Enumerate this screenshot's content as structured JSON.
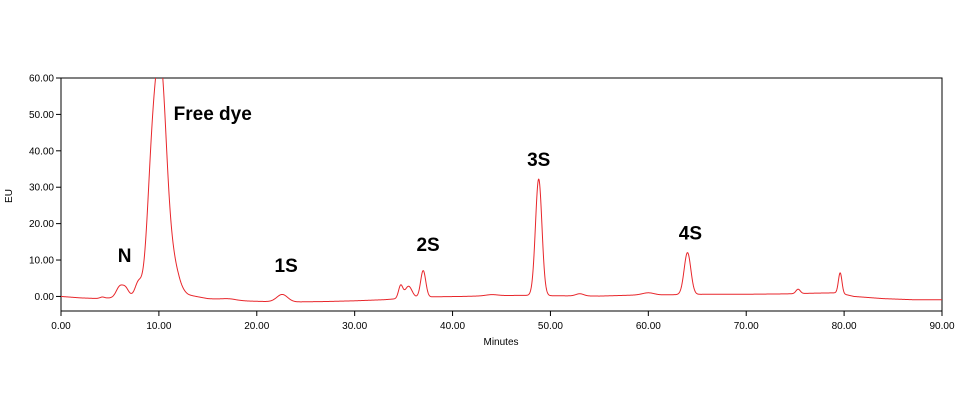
{
  "chart_data": {
    "type": "line",
    "title": "",
    "xlabel": "Minutes",
    "ylabel": "EU",
    "xlim": [
      0,
      90
    ],
    "ylim": [
      -4,
      60
    ],
    "grid": false,
    "line_color": "#e8262b",
    "x_ticks": [
      0,
      10,
      20,
      30,
      40,
      50,
      60,
      70,
      80,
      90
    ],
    "x_tick_labels": [
      "0.00",
      "10.00",
      "20.00",
      "30.00",
      "40.00",
      "50.00",
      "60.00",
      "70.00",
      "80.00",
      "90.00"
    ],
    "y_ticks": [
      0,
      10,
      20,
      30,
      40,
      50,
      60
    ],
    "y_tick_labels": [
      "0.00",
      "10.00",
      "20.00",
      "30.00",
      "40.00",
      "50.00",
      "60.00"
    ],
    "baseline": [
      [
        0,
        0
      ],
      [
        2,
        -0.4
      ],
      [
        4,
        -0.6
      ],
      [
        5,
        -0.4
      ],
      [
        7,
        0.2
      ],
      [
        9,
        0.6
      ],
      [
        12,
        1.3
      ],
      [
        13,
        0.4
      ],
      [
        15,
        -0.6
      ],
      [
        18,
        -1.2
      ],
      [
        21,
        -1.4
      ],
      [
        24,
        -1.5
      ],
      [
        27,
        -1.4
      ],
      [
        30,
        -1.2
      ],
      [
        33,
        -0.9
      ],
      [
        34.5,
        -0.6
      ],
      [
        36,
        -0.3
      ],
      [
        38,
        -0.1
      ],
      [
        41,
        0
      ],
      [
        44,
        0.2
      ],
      [
        47,
        0.3
      ],
      [
        50,
        0.2
      ],
      [
        55,
        0.1
      ],
      [
        59,
        0.4
      ],
      [
        61,
        0.4
      ],
      [
        63,
        0.5
      ],
      [
        66,
        0.6
      ],
      [
        70,
        0.6
      ],
      [
        74,
        0.7
      ],
      [
        77,
        0.9
      ],
      [
        79.4,
        1
      ],
      [
        81,
        0
      ],
      [
        84,
        -0.6
      ],
      [
        87,
        -0.9
      ],
      [
        90,
        -0.9
      ]
    ],
    "peaks": [
      {
        "rt": 4.2,
        "height": 0.4,
        "width": 0.25
      },
      {
        "rt": 6.0,
        "height": 2.8,
        "width": 0.35
      },
      {
        "rt": 6.6,
        "height": 2.0,
        "width": 0.3
      },
      {
        "rt": 7.9,
        "height": 3.4,
        "width": 0.32
      },
      {
        "rt": 9.3,
        "height": 32,
        "width": 0.5
      },
      {
        "rt": 10.2,
        "height": 55,
        "width": 0.55
      },
      {
        "rt": 11.2,
        "height": 10,
        "width": 0.65
      },
      {
        "rt": 17.2,
        "height": 0.4,
        "width": 0.8
      },
      {
        "rt": 22.6,
        "height": 2.0,
        "width": 0.55
      },
      {
        "rt": 34.7,
        "height": 3.5,
        "width": 0.22
      },
      {
        "rt": 35.5,
        "height": 3.2,
        "width": 0.35
      },
      {
        "rt": 37.0,
        "height": 7.3,
        "width": 0.26
      },
      {
        "rt": 44.0,
        "height": 0.3,
        "width": 0.6
      },
      {
        "rt": 48.8,
        "height": 32.0,
        "width": 0.33
      },
      {
        "rt": 53.0,
        "height": 0.6,
        "width": 0.4
      },
      {
        "rt": 60.0,
        "height": 0.6,
        "width": 0.6
      },
      {
        "rt": 64.0,
        "height": 11.5,
        "width": 0.34
      },
      {
        "rt": 75.3,
        "height": 1.2,
        "width": 0.22
      },
      {
        "rt": 79.6,
        "height": 5.6,
        "width": 0.18
      }
    ],
    "annotations": [
      {
        "text": "N",
        "x": 6.5,
        "y": 9.5
      },
      {
        "text": "Free dye",
        "x": 15.5,
        "y": 48.5
      },
      {
        "text": "1S",
        "x": 23.0,
        "y": 6.7
      },
      {
        "text": "2S",
        "x": 37.5,
        "y": 12.5
      },
      {
        "text": "3S",
        "x": 48.8,
        "y": 35.8
      },
      {
        "text": "4S",
        "x": 64.3,
        "y": 15.7
      }
    ]
  }
}
